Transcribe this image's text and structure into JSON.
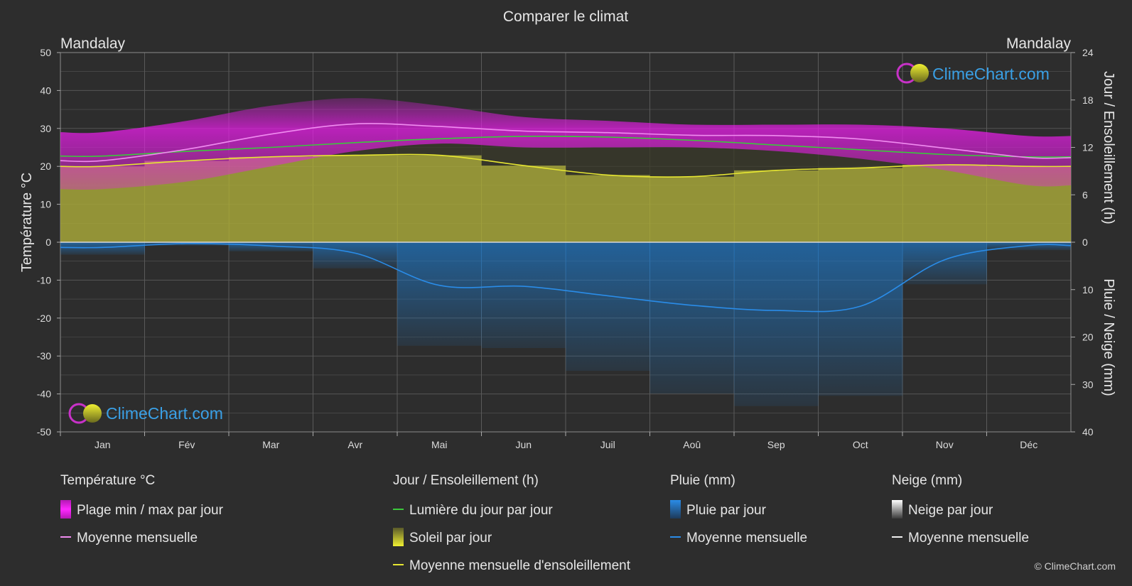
{
  "chart_data": {
    "type": "area",
    "title": "Comparer le climat",
    "location_left": "Mandalay",
    "location_right": "Mandalay",
    "categories": [
      "Jan",
      "Fév",
      "Mar",
      "Avr",
      "Mai",
      "Jun",
      "Juil",
      "Aoû",
      "Sep",
      "Oct",
      "Nov",
      "Déc"
    ],
    "axes": {
      "left": {
        "label": "Température °C",
        "min": -50,
        "max": 50,
        "ticks": [
          50,
          40,
          30,
          20,
          10,
          0,
          -10,
          -20,
          -30,
          -40,
          -50
        ]
      },
      "right_top": {
        "label": "Jour / Ensoleillement (h)",
        "min": 0,
        "max": 24,
        "ticks": [
          24,
          18,
          12,
          6,
          0
        ]
      },
      "right_bottom": {
        "label": "Pluie / Neige (mm)",
        "min": 0,
        "max": 40,
        "ticks": [
          0,
          10,
          20,
          30,
          40
        ]
      }
    },
    "grid": true,
    "series": [
      {
        "name": "Plage min / max par jour",
        "axis": "left",
        "kind": "band",
        "min": [
          14,
          16,
          20,
          24,
          26,
          25,
          25,
          25,
          24,
          22,
          19,
          15
        ],
        "max": [
          29,
          32,
          36,
          38,
          36,
          33,
          32,
          31,
          31,
          31,
          30,
          28
        ],
        "color": "#e61ee6"
      },
      {
        "name": "Moyenne mensuelle (température)",
        "axis": "left",
        "kind": "line",
        "values": [
          21.5,
          24.5,
          28.5,
          31.2,
          30.5,
          29.3,
          28.9,
          28.2,
          28.1,
          27.2,
          24.8,
          22.3
        ],
        "color": "#f08cf0"
      },
      {
        "name": "Lumière du jour par jour",
        "axis": "right_top",
        "kind": "line",
        "values": [
          10.9,
          11.5,
          12.0,
          12.6,
          13.1,
          13.4,
          13.3,
          12.9,
          12.3,
          11.7,
          11.1,
          10.8
        ],
        "color": "#3cc83c"
      },
      {
        "name": "Soleil par jour",
        "axis": "right_top",
        "kind": "band",
        "values": [
          9.6,
          10.3,
          10.8,
          11.0,
          11.0,
          9.7,
          8.5,
          8.3,
          9.1,
          9.4,
          9.8,
          9.6
        ],
        "color": "#b4b432"
      },
      {
        "name": "Moyenne mensuelle d'ensoleillement",
        "axis": "right_top",
        "kind": "line",
        "values": [
          9.6,
          10.3,
          10.8,
          11.0,
          11.0,
          9.7,
          8.5,
          8.3,
          9.1,
          9.4,
          9.8,
          9.6
        ],
        "color": "#e6e632"
      },
      {
        "name": "Pluie par jour",
        "axis": "right_bottom",
        "kind": "band",
        "values": [
          1.1,
          0.3,
          0.8,
          2.3,
          9.1,
          9.3,
          11.3,
          13.3,
          14.4,
          13.5,
          3.7,
          0.7
        ],
        "color": "#1e78c8"
      },
      {
        "name": "Moyenne mensuelle (pluie)",
        "axis": "right_bottom",
        "kind": "line",
        "values": [
          1.1,
          0.3,
          0.8,
          2.3,
          9.1,
          9.3,
          11.3,
          13.3,
          14.4,
          13.5,
          3.7,
          0.7
        ],
        "color": "#2a8ce8"
      }
    ]
  },
  "legend": {
    "groups": [
      {
        "title": "Température °C",
        "items": [
          {
            "label": "Plage min / max par jour",
            "swatch": "box",
            "color": "#e61ee6"
          },
          {
            "label": "Moyenne mensuelle",
            "swatch": "line",
            "color": "#f08cf0"
          }
        ]
      },
      {
        "title": "Jour / Ensoleillement (h)",
        "items": [
          {
            "label": "Lumière du jour par jour",
            "swatch": "line",
            "color": "#3cc83c"
          },
          {
            "label": "Soleil par jour",
            "swatch": "box",
            "color": "#d2d23c"
          },
          {
            "label": "Moyenne mensuelle d'ensoleillement",
            "swatch": "line",
            "color": "#e6e632"
          }
        ]
      },
      {
        "title": "Pluie (mm)",
        "items": [
          {
            "label": "Pluie par jour",
            "swatch": "box",
            "color": "#1e78c8"
          },
          {
            "label": "Moyenne mensuelle",
            "swatch": "line",
            "color": "#2a8ce8"
          }
        ]
      },
      {
        "title": "Neige (mm)",
        "items": [
          {
            "label": "Neige par jour",
            "swatch": "box",
            "color": "#e6e6e6"
          },
          {
            "label": "Moyenne mensuelle",
            "swatch": "line",
            "color": "#f0f0f0"
          }
        ]
      }
    ]
  },
  "watermark": "ClimeChart.com",
  "copyright": "© ClimeChart.com",
  "colors": {
    "background": "#2d2d2d",
    "grid": "#5a5a5a",
    "text": "#e6e6e6",
    "brand": "#3aa0e6"
  }
}
